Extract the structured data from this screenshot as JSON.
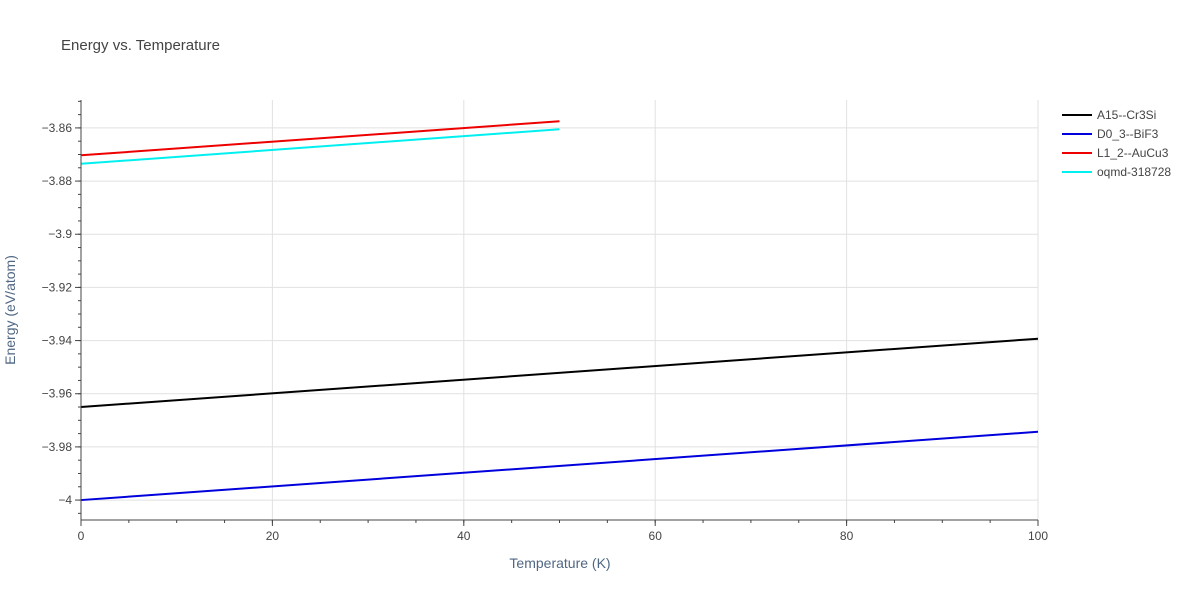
{
  "chart_data": {
    "type": "line",
    "title": "Energy vs. Temperature",
    "xlabel": "Temperature (K)",
    "ylabel": "Energy (eV/atom)",
    "xlim": [
      0,
      100
    ],
    "ylim": [
      -4.0075,
      -3.8495
    ],
    "xticks": [
      0,
      20,
      40,
      60,
      80,
      100
    ],
    "xtick_labels": [
      "0",
      "20",
      "40",
      "60",
      "80",
      "100"
    ],
    "yticks": [
      -4.0,
      -3.98,
      -3.96,
      -3.94,
      -3.92,
      -3.9,
      -3.88,
      -3.86
    ],
    "ytick_labels": [
      "−4",
      "−3.98",
      "−3.96",
      "−3.94",
      "−3.92",
      "−3.9",
      "−3.88",
      "−3.86"
    ],
    "grid": true,
    "legend_position": "top-right",
    "series": [
      {
        "name": "A15--Cr3Si",
        "color": "#000000",
        "x": [
          0,
          100
        ],
        "y": [
          -3.965,
          -3.9393
        ]
      },
      {
        "name": "D0_3--BiF3",
        "color": "#0000dd",
        "x": [
          0,
          100
        ],
        "y": [
          -4.0,
          -3.9743
        ]
      },
      {
        "name": "L1_2--AuCu3",
        "color": "#ee0000",
        "x": [
          0,
          50
        ],
        "y": [
          -3.8703,
          -3.8575
        ]
      },
      {
        "name": "oqmd-318728",
        "color": "#00f0f0",
        "x": [
          0,
          50
        ],
        "y": [
          -3.8735,
          -3.8605
        ]
      }
    ]
  }
}
